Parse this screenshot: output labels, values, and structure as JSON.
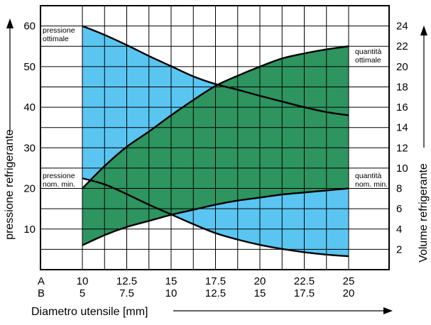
{
  "chart_data": {
    "type": "area",
    "xlabel": "Diametro utensile [mm]",
    "ylabel_left": "pressione refrigerante",
    "ylabel_right": "Volume refrigerante",
    "x_rows": [
      {
        "label": "A",
        "ticks": [
          "10",
          "12.5",
          "15",
          "17.5",
          "20",
          "22.5",
          "25"
        ]
      },
      {
        "label": "B",
        "ticks": [
          "5",
          "7.5",
          "10",
          "12.5",
          "15",
          "17.5",
          "20"
        ]
      }
    ],
    "xlim": [
      10,
      25
    ],
    "x_minor_step": 1.25,
    "y_left": {
      "lim": [
        0,
        65
      ],
      "ticks": [
        10,
        20,
        30,
        40,
        50,
        60
      ],
      "minor_step": 5
    },
    "y_right": {
      "lim": [
        0,
        26
      ],
      "ticks": [
        2,
        4,
        6,
        8,
        10,
        12,
        14,
        16,
        18,
        20,
        22,
        24
      ]
    },
    "grid": true,
    "series": [
      {
        "name": "pressione ottimale",
        "axis": "left",
        "x": [
          10,
          11.25,
          12.5,
          13.75,
          15,
          16.25,
          17.5,
          18.75,
          20,
          21.25,
          22.5,
          23.75,
          25
        ],
        "y": [
          60,
          57.8,
          55.3,
          52.6,
          50.1,
          47.6,
          45.7,
          44.3,
          42.8,
          41.4,
          40,
          38.8,
          38
        ]
      },
      {
        "name": "pressione nom. min.",
        "axis": "left",
        "x": [
          10,
          11.25,
          12.5,
          13.75,
          15,
          16.25,
          17.5,
          18.75,
          20,
          21.25,
          22.5,
          23.75,
          25
        ],
        "y": [
          22.5,
          21,
          18.6,
          16,
          13.6,
          11.2,
          9,
          7.4,
          6.1,
          5.1,
          4.3,
          3.7,
          3.3
        ]
      },
      {
        "name": "quantità ottimale",
        "axis": "right",
        "x": [
          10,
          11.25,
          12.5,
          13.75,
          15,
          16.25,
          17.5,
          18.75,
          20,
          21.25,
          22.5,
          23.75,
          25
        ],
        "y": [
          8,
          10.2,
          12.1,
          13.6,
          15.2,
          16.7,
          18.1,
          19.1,
          20,
          20.8,
          21.3,
          21.7,
          22
        ]
      },
      {
        "name": "quantità nom. min.",
        "axis": "right",
        "x": [
          10,
          11.25,
          12.5,
          13.75,
          15,
          16.25,
          17.5,
          18.75,
          20,
          21.25,
          22.5,
          23.75,
          25
        ],
        "y": [
          2.4,
          3.4,
          4.2,
          4.8,
          5.4,
          5.9,
          6.4,
          6.8,
          7.1,
          7.4,
          7.6,
          7.8,
          8
        ]
      }
    ],
    "annotations": {
      "pressione_ottimale": [
        "pressione",
        "ottimale"
      ],
      "pressione_nom_min": [
        "pressione",
        "nom. min."
      ],
      "quantita_ottimale": [
        "quantità",
        "ottimale"
      ],
      "quantita_nom_min": [
        "quantità",
        "nom. min."
      ]
    },
    "colors": {
      "pressure_band": "#5bc5f2",
      "volume_band": "#2e9460",
      "lines": "#000000",
      "background": "#ffffff"
    }
  }
}
